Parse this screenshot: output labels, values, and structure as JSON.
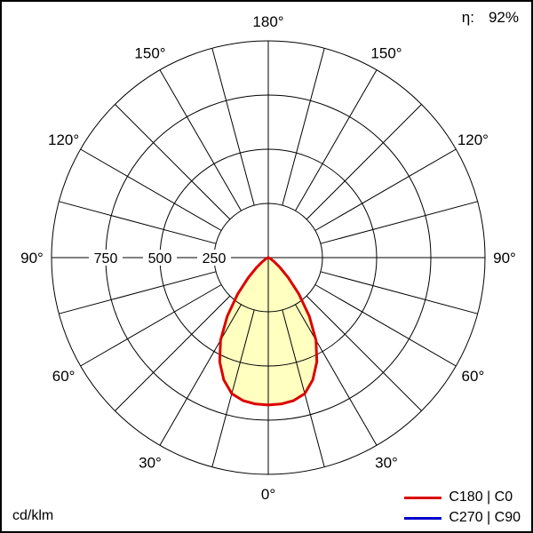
{
  "header": {
    "efficiency_label": "η:",
    "efficiency_value": "92%"
  },
  "footer": {
    "unit_label": "cd/klm"
  },
  "legend": {
    "items": [
      {
        "label": "C180 | C0",
        "color": "#dd0000"
      },
      {
        "label": "C270 | C90",
        "color": "#0000cc"
      }
    ]
  },
  "chart_data": {
    "type": "polar",
    "title": "Polar luminous intensity distribution curve",
    "unit": "cd/klm",
    "efficiency": "92%",
    "r_max": 1000,
    "radial_ticks": [
      750,
      500,
      250
    ],
    "angle_labels_deg": [
      0,
      30,
      60,
      90,
      120,
      150,
      180
    ],
    "grid": {
      "spoke_step_deg": 15,
      "ring_values": [
        250,
        500,
        750,
        1000
      ]
    },
    "angles_deg": [
      -90,
      -85,
      -80,
      -75,
      -70,
      -65,
      -60,
      -55,
      -50,
      -45,
      -40,
      -35,
      -30,
      -25,
      -20,
      -15,
      -10,
      -5,
      0,
      5,
      10,
      15,
      20,
      25,
      30,
      35,
      40,
      45,
      50,
      55,
      60,
      65,
      70,
      75,
      80,
      85,
      90
    ],
    "series": [
      {
        "name": "C180 | C0",
        "color": "#dd0000",
        "fill": "#ffffc0",
        "values_cd_per_klm": [
          0,
          0,
          1,
          2,
          4,
          8,
          15,
          35,
          70,
          130,
          220,
          330,
          440,
          530,
          600,
          650,
          670,
          678,
          680,
          678,
          670,
          650,
          600,
          530,
          440,
          330,
          220,
          130,
          70,
          35,
          15,
          8,
          4,
          2,
          1,
          0,
          0
        ]
      },
      {
        "name": "C270 | C90",
        "color": "#0000cc",
        "fill": "none",
        "values_cd_per_klm": [
          0,
          0,
          1,
          2,
          4,
          8,
          15,
          35,
          70,
          130,
          220,
          330,
          440,
          530,
          600,
          650,
          670,
          678,
          680,
          678,
          670,
          650,
          600,
          530,
          440,
          330,
          220,
          130,
          70,
          35,
          15,
          8,
          4,
          2,
          1,
          0,
          0
        ]
      }
    ]
  }
}
